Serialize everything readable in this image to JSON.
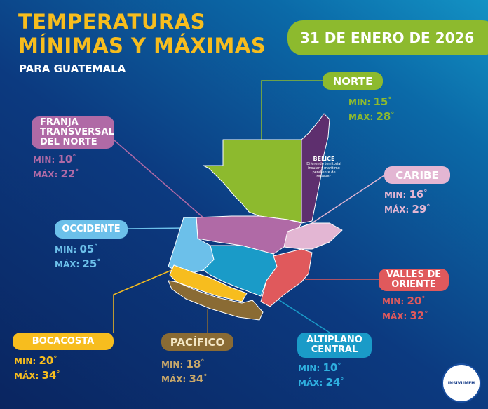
{
  "header": {
    "title_line1": "TEMPERATURAS",
    "title_line2": "MÍNIMAS Y MÁXIMAS",
    "subtitle": "PARA GUATEMALA",
    "date": "31 DE ENERO DE 2026"
  },
  "labels": {
    "min": "MIN:",
    "max": "MÁX:",
    "deg": "°"
  },
  "regions": {
    "norte": {
      "name": "NORTE",
      "min": "15",
      "max": "28",
      "color": "#8dba2e"
    },
    "franja": {
      "name": "FRANJA TRANSVERSAL DEL NORTE",
      "min": "10",
      "max": "22",
      "color": "#b06aa6"
    },
    "caribe": {
      "name": "CARIBE",
      "min": "16",
      "max": "29",
      "color": "#e3b6d3"
    },
    "occidente": {
      "name": "OCCIDENTE",
      "min": "05",
      "max": "25",
      "color": "#6cc0ea"
    },
    "valles": {
      "name": "VALLES DE ORIENTE",
      "min": "20",
      "max": "32",
      "color": "#e0595c"
    },
    "bocacosta": {
      "name": "BOCACOSTA",
      "min": "20",
      "max": "34",
      "color": "#f7bd1e"
    },
    "pacifico": {
      "name": "PACÍFICO",
      "min": "18",
      "max": "34",
      "color": "#8a6b34"
    },
    "altiplano": {
      "name": "ALTIPLANO CENTRAL",
      "min": "10",
      "max": "24",
      "color": "#1a9bc8"
    }
  },
  "belice": {
    "name": "BELICE",
    "note": "Diferendo territorial insular y marítimo pendiente de resolver.",
    "color": "#5e2f6e"
  },
  "logo": {
    "text": "INSIVUMEH"
  }
}
